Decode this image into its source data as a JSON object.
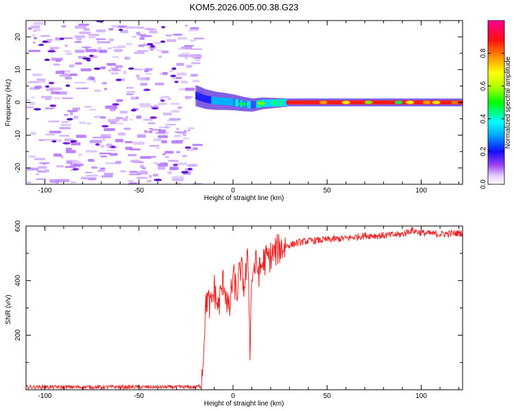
{
  "title": "KOM5.2026.005.00.38.G23",
  "top_panel": {
    "xlabel": "Height of straight line (km)",
    "ylabel": "Frequency (Hz)",
    "xlim": [
      -110,
      122
    ],
    "ylim": [
      -25,
      25
    ],
    "xticks": [
      -100,
      -50,
      0,
      50,
      100
    ],
    "yticks": [
      -20,
      -10,
      0,
      10,
      20
    ]
  },
  "colorbar": {
    "label": "Normalized spectral amplitude",
    "ticks": [
      0.0,
      0.2,
      0.4,
      0.6,
      0.8
    ],
    "tick_labels": [
      "0.0",
      "0.2",
      "0.4",
      "0.6",
      "0.8"
    ],
    "range": [
      0,
      1
    ]
  },
  "bottom_panel": {
    "xlabel": "Height of straight line (km)",
    "ylabel": "SNR (v/v)",
    "xlim": [
      -110,
      122
    ],
    "ylim": [
      0,
      600
    ],
    "xticks": [
      -100,
      -50,
      0,
      50,
      100
    ],
    "yticks": [
      200,
      400,
      600
    ],
    "line_color": "#ee2222"
  },
  "chart_data": [
    {
      "type": "heatmap",
      "title": "KOM5.2026.005.00.38.G23",
      "xlabel": "Height of straight line (km)",
      "ylabel": "Frequency (Hz)",
      "xlim": [
        -110,
        122
      ],
      "ylim": [
        -25,
        25
      ],
      "description_values": {
        "noise_region_km": [
          -110,
          -22
        ],
        "signal_onset_km": -20,
        "signal_center_freq_hz": [
          [
            -20,
            2.0
          ],
          [
            -15,
            1.0
          ],
          [
            -10,
            0.5
          ],
          [
            -5,
            0.3
          ],
          [
            0,
            0.0
          ],
          [
            5,
            -0.5
          ],
          [
            10,
            -0.8
          ],
          [
            15,
            -0.3
          ],
          [
            20,
            -0.2
          ],
          [
            30,
            0.0
          ],
          [
            60,
            0.0
          ],
          [
            90,
            0.0
          ],
          [
            122,
            0.0
          ]
        ],
        "peak_amplitude_region_km": [
          28,
          120
        ]
      }
    },
    {
      "type": "line",
      "xlabel": "Height of straight line (km)",
      "ylabel": "SNR (v/v)",
      "xlim": [
        -110,
        122
      ],
      "ylim": [
        0,
        600
      ],
      "series": [
        {
          "name": "SNR",
          "x": [
            -110,
            -80,
            -50,
            -20,
            -17,
            -16,
            -15,
            -14,
            -12,
            -10,
            -8,
            -5,
            -2,
            0,
            2,
            4,
            6,
            8,
            9,
            10,
            12,
            14,
            16,
            20,
            25,
            30,
            35,
            40,
            50,
            60,
            70,
            80,
            90,
            95,
            100,
            110,
            122
          ],
          "y": [
            10,
            10,
            10,
            10,
            15,
            100,
            250,
            340,
            300,
            370,
            300,
            400,
            280,
            420,
            350,
            450,
            380,
            480,
            160,
            420,
            460,
            430,
            470,
            490,
            520,
            530,
            540,
            545,
            550,
            555,
            565,
            565,
            570,
            585,
            575,
            570,
            575
          ]
        }
      ]
    }
  ]
}
